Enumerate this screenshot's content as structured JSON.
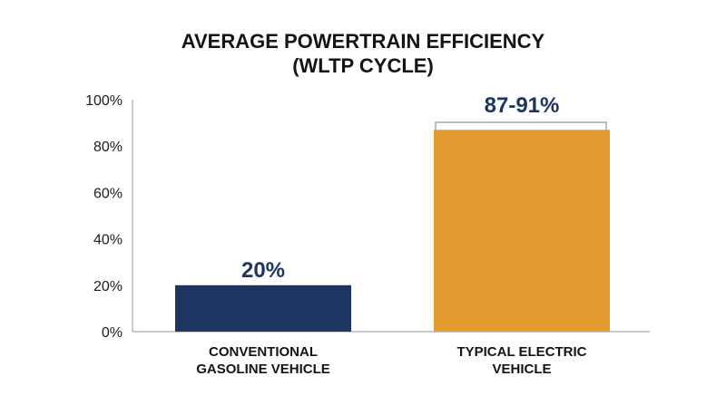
{
  "chart_data": {
    "type": "bar",
    "title": [
      "AVERAGE POWERTRAIN EFFICIENCY",
      "(WLTP CYCLE)"
    ],
    "categories": [
      [
        "CONVENTIONAL",
        "GASOLINE VEHICLE"
      ],
      [
        "TYPICAL ELECTRIC",
        "VEHICLE"
      ]
    ],
    "series": [
      {
        "values": [
          20,
          87
        ],
        "range_high": [
          20,
          91
        ],
        "data_labels": [
          "20%",
          "87-91%"
        ],
        "colors": [
          "#1e3562",
          "#e49b2f"
        ]
      }
    ],
    "ylim": [
      0,
      100
    ],
    "yticks": [
      0,
      20,
      40,
      60,
      80,
      100
    ],
    "ytick_labels": [
      "0%",
      "20%",
      "40%",
      "60%",
      "80%",
      "100%"
    ],
    "grid": false,
    "legend": "none",
    "colors": {
      "axis": "#b9b9b9",
      "text": "#141414",
      "label_dark": "#1e3562",
      "bracket": "#a8a8a8"
    }
  }
}
